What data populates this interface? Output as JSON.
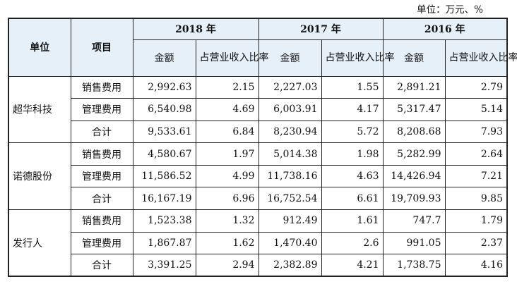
{
  "unit_note": "单位：万元、%",
  "header": {
    "col_unit": "单位",
    "col_item": "项目",
    "years": [
      "2018 年",
      "2017 年",
      "2016 年"
    ],
    "amount": "金额",
    "ratio": "占营业收入比率"
  },
  "groups": [
    {
      "name": "超华科技",
      "rows": [
        {
          "item": "销售费用",
          "v": [
            "2,992.63",
            "2.15",
            "2,227.03",
            "1.55",
            "2,891.21",
            "2.79"
          ]
        },
        {
          "item": "管理费用",
          "v": [
            "6,540.98",
            "4.69",
            "6,003.91",
            "4.17",
            "5,317.47",
            "5.14"
          ]
        },
        {
          "item": "合计",
          "v": [
            "9,533.61",
            "6.84",
            "8,230.94",
            "5.72",
            "8,208.68",
            "7.93"
          ]
        }
      ]
    },
    {
      "name": "诺德股份",
      "rows": [
        {
          "item": "销售费用",
          "v": [
            "4,580.67",
            "1.97",
            "5,014.38",
            "1.98",
            "5,282.99",
            "2.64"
          ]
        },
        {
          "item": "管理费用",
          "v": [
            "11,586.52",
            "4.99",
            "11,738.16",
            "4.63",
            "14,426.94",
            "7.21"
          ]
        },
        {
          "item": "合计",
          "v": [
            "16,167.19",
            "6.96",
            "16,752.54",
            "6.61",
            "19,709.93",
            "9.85"
          ]
        }
      ]
    },
    {
      "name": "发行人",
      "rows": [
        {
          "item": "销售费用",
          "v": [
            "1,523.38",
            "1.32",
            "912.49",
            "1.61",
            "747.7",
            "1.79"
          ]
        },
        {
          "item": "管理费用",
          "v": [
            "1,867.87",
            "1.62",
            "1,470.40",
            "2.6",
            "991.05",
            "2.37"
          ]
        },
        {
          "item": "合计",
          "v": [
            "3,391.25",
            "2.94",
            "2,382.89",
            "4.21",
            "1,738.75",
            "4.16"
          ]
        }
      ]
    }
  ]
}
